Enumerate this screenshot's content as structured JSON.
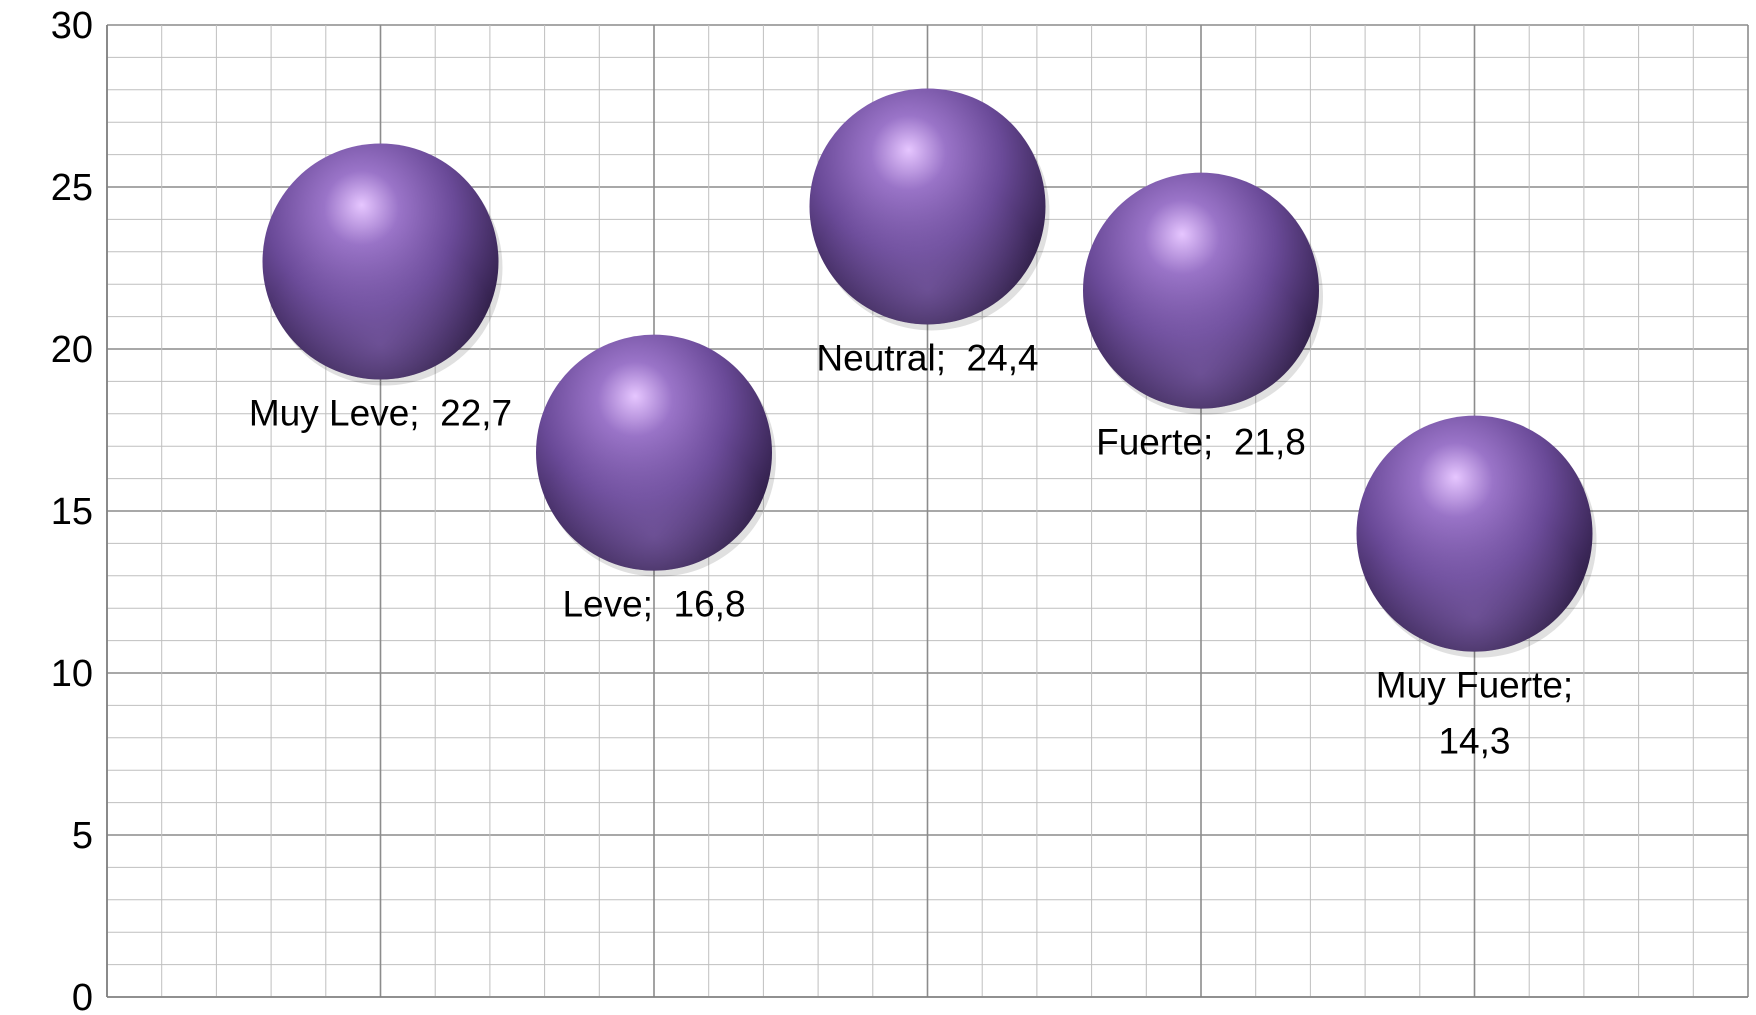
{
  "chart_data": {
    "type": "scatter",
    "title": "",
    "xlabel": "",
    "ylabel": "",
    "ylim": [
      0,
      30
    ],
    "xlim": [
      0,
      6
    ],
    "y_ticks": [
      "0",
      "5",
      "10",
      "15",
      "20",
      "25",
      "30"
    ],
    "grid": true,
    "legend": "none",
    "series": [
      {
        "color": "#7a5aa8",
        "points": [
          {
            "x": 1,
            "y": 22.7,
            "label": [
              "Muy Leve;  22,7"
            ]
          },
          {
            "x": 2,
            "y": 16.8,
            "label": [
              "Leve;  16,8"
            ]
          },
          {
            "x": 3,
            "y": 24.4,
            "label": [
              "Neutral;  24,4"
            ]
          },
          {
            "x": 4,
            "y": 21.8,
            "label": [
              "Fuerte;  21,8"
            ]
          },
          {
            "x": 5,
            "y": 14.3,
            "label": [
              "Muy Fuerte;",
              "14,3"
            ]
          }
        ]
      }
    ]
  }
}
